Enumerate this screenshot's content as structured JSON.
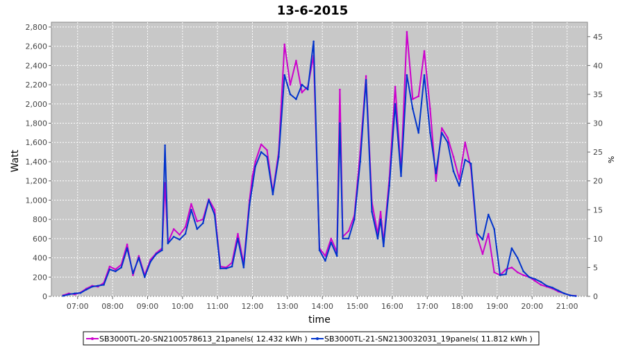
{
  "chart_data": {
    "type": "line",
    "title": "13-6-2015",
    "xlabel": "time",
    "ylabel": "Watt",
    "y2label": "%",
    "xlim": [
      "06:15",
      "21:35"
    ],
    "ylim": [
      0,
      2850
    ],
    "y2lim": [
      0,
      47.5
    ],
    "x_ticks": [
      "07:00",
      "08:00",
      "09:00",
      "10:00",
      "11:00",
      "12:00",
      "13:00",
      "14:00",
      "15:00",
      "16:00",
      "17:00",
      "18:00",
      "19:00",
      "20:00",
      "21:00"
    ],
    "y_ticks": [
      "0",
      "200",
      "400",
      "600",
      "800",
      "1,000",
      "1,200",
      "1,400",
      "1,600",
      "1,800",
      "2,000",
      "2,200",
      "2,400",
      "2,600",
      "2,800"
    ],
    "y2_ticks": [
      "0",
      "5",
      "10",
      "15",
      "20",
      "25",
      "30",
      "35",
      "40",
      "45"
    ],
    "grid": true,
    "legend_position": "bottom",
    "colors": {
      "plot_bg": "#c8c8c8",
      "series1": "#cc00cc",
      "series2": "#0033cc"
    },
    "x": [
      "06:35",
      "06:45",
      "06:55",
      "07:05",
      "07:15",
      "07:25",
      "07:35",
      "07:45",
      "07:55",
      "08:05",
      "08:15",
      "08:25",
      "08:35",
      "08:45",
      "08:55",
      "09:05",
      "09:15",
      "09:25",
      "09:30",
      "09:35",
      "09:45",
      "09:55",
      "10:05",
      "10:15",
      "10:25",
      "10:35",
      "10:45",
      "10:55",
      "11:05",
      "11:15",
      "11:25",
      "11:35",
      "11:45",
      "11:55",
      "12:00",
      "12:05",
      "12:15",
      "12:25",
      "12:35",
      "12:45",
      "12:55",
      "13:05",
      "13:15",
      "13:25",
      "13:35",
      "13:45",
      "13:55",
      "14:05",
      "14:15",
      "14:25",
      "14:30",
      "14:35",
      "14:45",
      "14:55",
      "15:05",
      "15:15",
      "15:25",
      "15:35",
      "15:40",
      "15:45",
      "15:55",
      "16:05",
      "16:15",
      "16:25",
      "16:35",
      "16:45",
      "16:55",
      "17:05",
      "17:15",
      "17:25",
      "17:35",
      "17:45",
      "17:55",
      "18:05",
      "18:15",
      "18:25",
      "18:35",
      "18:45",
      "18:55",
      "19:05",
      "19:15",
      "19:25",
      "19:35",
      "19:45",
      "19:55",
      "20:05",
      "20:15",
      "20:25",
      "20:35",
      "20:45",
      "20:55",
      "21:05",
      "21:15"
    ],
    "series": [
      {
        "name": "SB3000TL-20-SN2100578613_21panels( 12.432 kWh )",
        "values": [
          10,
          30,
          20,
          40,
          80,
          110,
          100,
          140,
          310,
          280,
          330,
          540,
          220,
          420,
          220,
          380,
          450,
          500,
          1180,
          560,
          700,
          640,
          720,
          960,
          780,
          800,
          1010,
          900,
          310,
          300,
          350,
          650,
          340,
          1000,
          1250,
          1400,
          1580,
          1520,
          1080,
          1500,
          2620,
          2200,
          2450,
          2120,
          2180,
          2500,
          500,
          420,
          600,
          460,
          2150,
          620,
          680,
          840,
          1500,
          2290,
          980,
          650,
          880,
          560,
          1230,
          2180,
          1300,
          2750,
          2050,
          2080,
          2550,
          1950,
          1200,
          1750,
          1650,
          1450,
          1220,
          1600,
          1330,
          640,
          440,
          650,
          250,
          220,
          280,
          300,
          250,
          220,
          200,
          160,
          120,
          100,
          80,
          50,
          30,
          10,
          5
        ],
        "values_unused": null
      },
      {
        "name": "SB3000TL-21-SN2130032031_19panels( 11.812 kWh )",
        "values": [
          5,
          20,
          30,
          35,
          70,
          100,
          110,
          120,
          280,
          260,
          300,
          500,
          240,
          400,
          200,
          360,
          440,
          480,
          1570,
          550,
          620,
          590,
          650,
          900,
          700,
          760,
          1000,
          850,
          290,
          290,
          310,
          600,
          300,
          950,
          1150,
          1350,
          1500,
          1450,
          1060,
          1450,
          2300,
          2100,
          2050,
          2200,
          2150,
          2650,
          480,
          370,
          560,
          420,
          1800,
          600,
          600,
          800,
          1400,
          2250,
          880,
          600,
          800,
          520,
          1150,
          2000,
          1250,
          2300,
          1950,
          1700,
          2300,
          1700,
          1280,
          1700,
          1600,
          1300,
          1150,
          1420,
          1380,
          660,
          590,
          850,
          700,
          220,
          230,
          500,
          400,
          260,
          200,
          180,
          150,
          110,
          90,
          60,
          30,
          10,
          3
        ]
      }
    ]
  },
  "legend": {
    "items": [
      "SB3000TL-20-SN2100578613_21panels( 12.432 kWh )",
      "SB3000TL-21-SN2130032031_19panels( 11.812 kWh )"
    ]
  }
}
